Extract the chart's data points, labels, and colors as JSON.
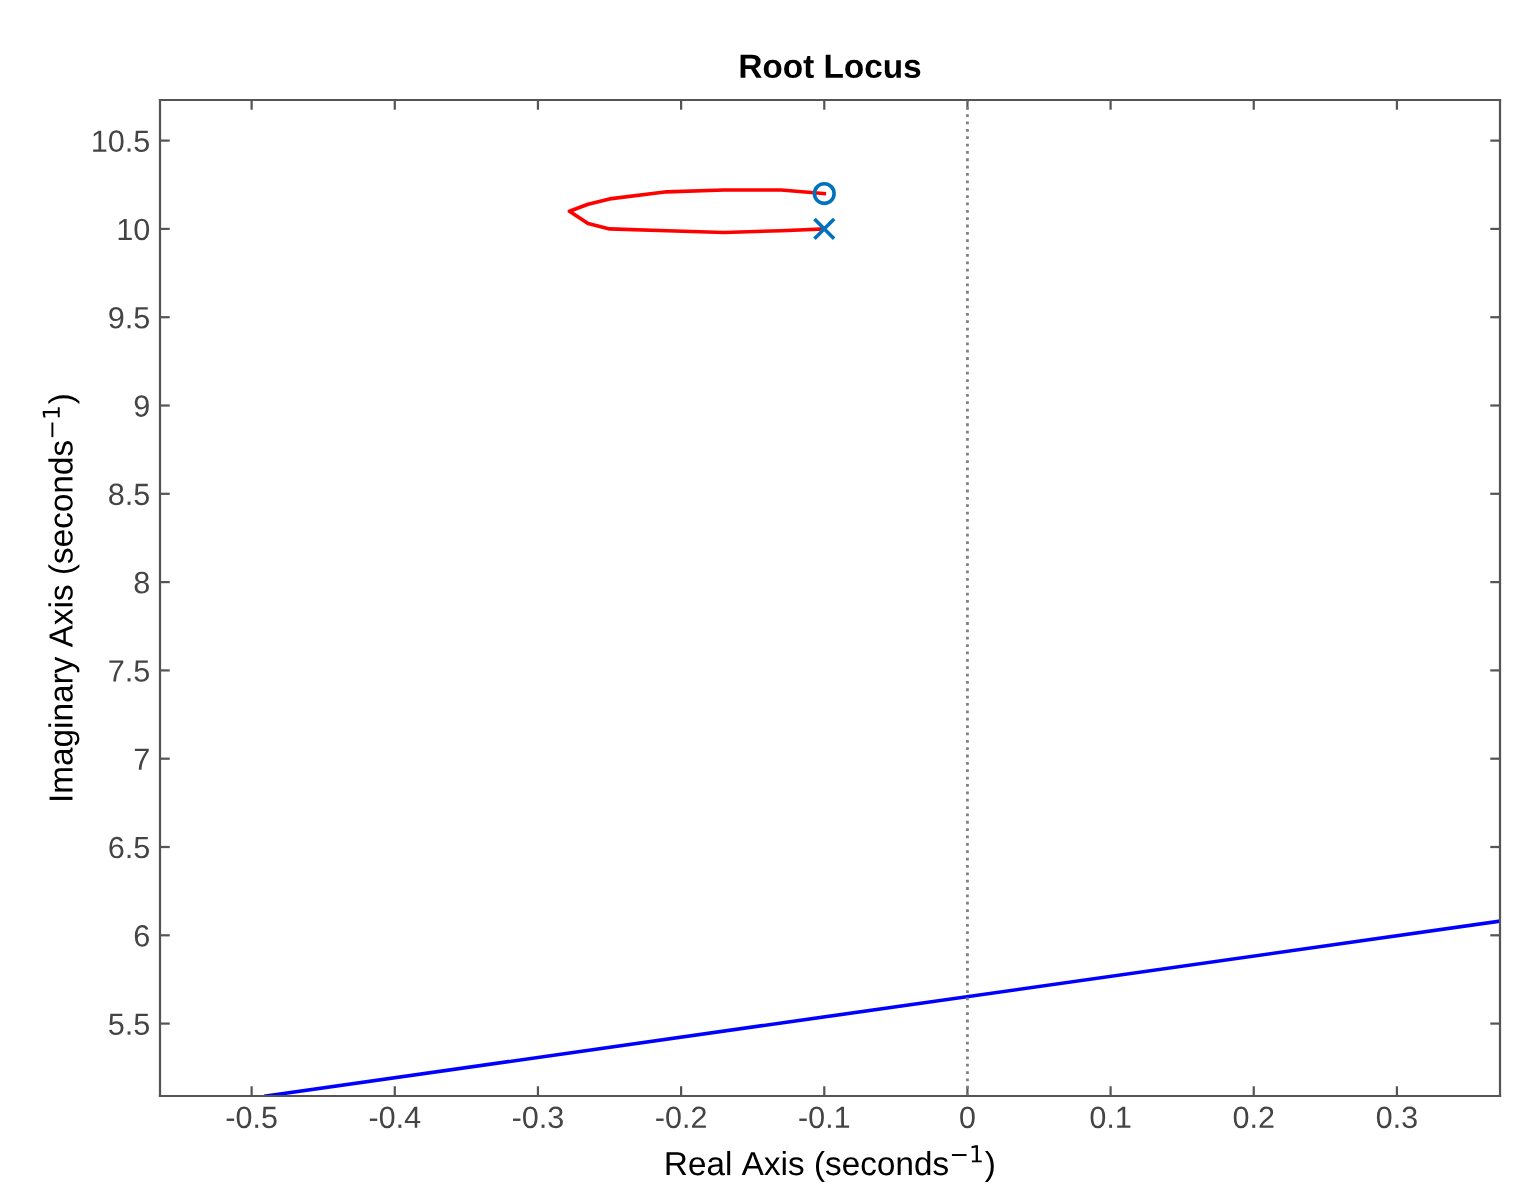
{
  "chart_data": {
    "type": "line",
    "title": "Root Locus",
    "xlabel": "Real Axis (seconds$^{−1}$)",
    "ylabel": "Imaginary Axis (seconds$^{−1}$)",
    "xlim": [
      -0.564,
      0.372
    ],
    "ylim": [
      5.09,
      10.73
    ],
    "xticks": [
      -0.5,
      -0.4,
      -0.3,
      -0.2,
      -0.1,
      0,
      0.1,
      0.2,
      0.3
    ],
    "yticks": [
      5.5,
      6,
      6.5,
      7,
      7.5,
      8,
      8.5,
      9,
      9.5,
      10,
      10.5
    ],
    "grid": false,
    "legend": false,
    "ref_lines": [
      {
        "axis": "x",
        "value": 0,
        "color": "#808080",
        "line_style": "dotted"
      }
    ],
    "series": [
      {
        "color": "#ff0000",
        "x": [
          -0.1,
          -0.13,
          -0.17,
          -0.21,
          -0.25,
          -0.265,
          -0.278,
          -0.265,
          -0.25,
          -0.21,
          -0.17,
          -0.13,
          -0.1
        ],
        "values": [
          10.0,
          9.99,
          9.98,
          9.99,
          10.0,
          10.03,
          10.1,
          10.14,
          10.17,
          10.21,
          10.22,
          10.22,
          10.2
        ]
      },
      {
        "color": "#0000ff",
        "x": [
          -0.49,
          0.372
        ],
        "values": [
          5.09,
          6.08
        ]
      },
      {
        "type": "scatter",
        "marker": "cross",
        "color": "#0072bd",
        "x": [
          -0.1
        ],
        "values": [
          10.0
        ]
      },
      {
        "type": "scatter",
        "marker": "circle",
        "color": "#0072bd",
        "x": [
          -0.1
        ],
        "values": [
          10.2
        ]
      }
    ]
  }
}
